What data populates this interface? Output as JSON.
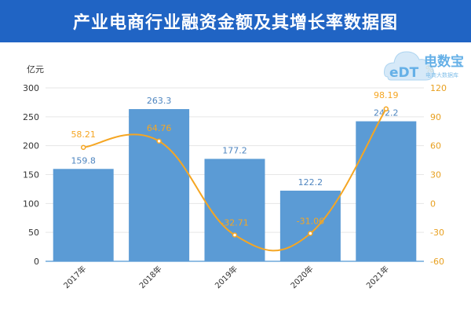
{
  "title": "产业电商行业融资金额及其增长率数据图",
  "watermark": {
    "logo_text": "eDT",
    "brand": "电数宝",
    "subtitle": "电商大数据库"
  },
  "colors": {
    "header": "#2064c4",
    "bar": "#5b9bd5",
    "line": "#f5a623",
    "left_axis_text": "#333333",
    "right_axis_text": "#e8a020"
  },
  "chart_data": {
    "type": "bar",
    "title": "产业电商行业融资金额及其增长率数据图",
    "categories": [
      "2017年",
      "2018年",
      "2019年",
      "2020年",
      "2021年"
    ],
    "series": [
      {
        "name": "",
        "type": "bar",
        "axis": "left",
        "values": [
          159.8,
          263.3,
          177.2,
          122.2,
          242.2
        ]
      },
      {
        "name": "",
        "type": "line",
        "axis": "right",
        "values": [
          58.21,
          64.76,
          -32.71,
          -31.06,
          98.19
        ]
      }
    ],
    "ylabel": "亿元",
    "ylabel_right": "%",
    "ylim": [
      0,
      300
    ],
    "ylim_right": [
      -60,
      120
    ],
    "yticks": [
      0,
      50,
      100,
      150,
      200,
      250,
      300
    ],
    "yticks_right": [
      -60,
      -30,
      0,
      30,
      60,
      90,
      120
    ],
    "data_labels": {
      "bars": [
        "159.8",
        "263.3",
        "177.2",
        "122.2",
        "242.2"
      ],
      "line": [
        "58.21",
        "64.76",
        "-32.71",
        "-31.06",
        "98.19"
      ]
    },
    "grid": true,
    "legend": "none"
  }
}
